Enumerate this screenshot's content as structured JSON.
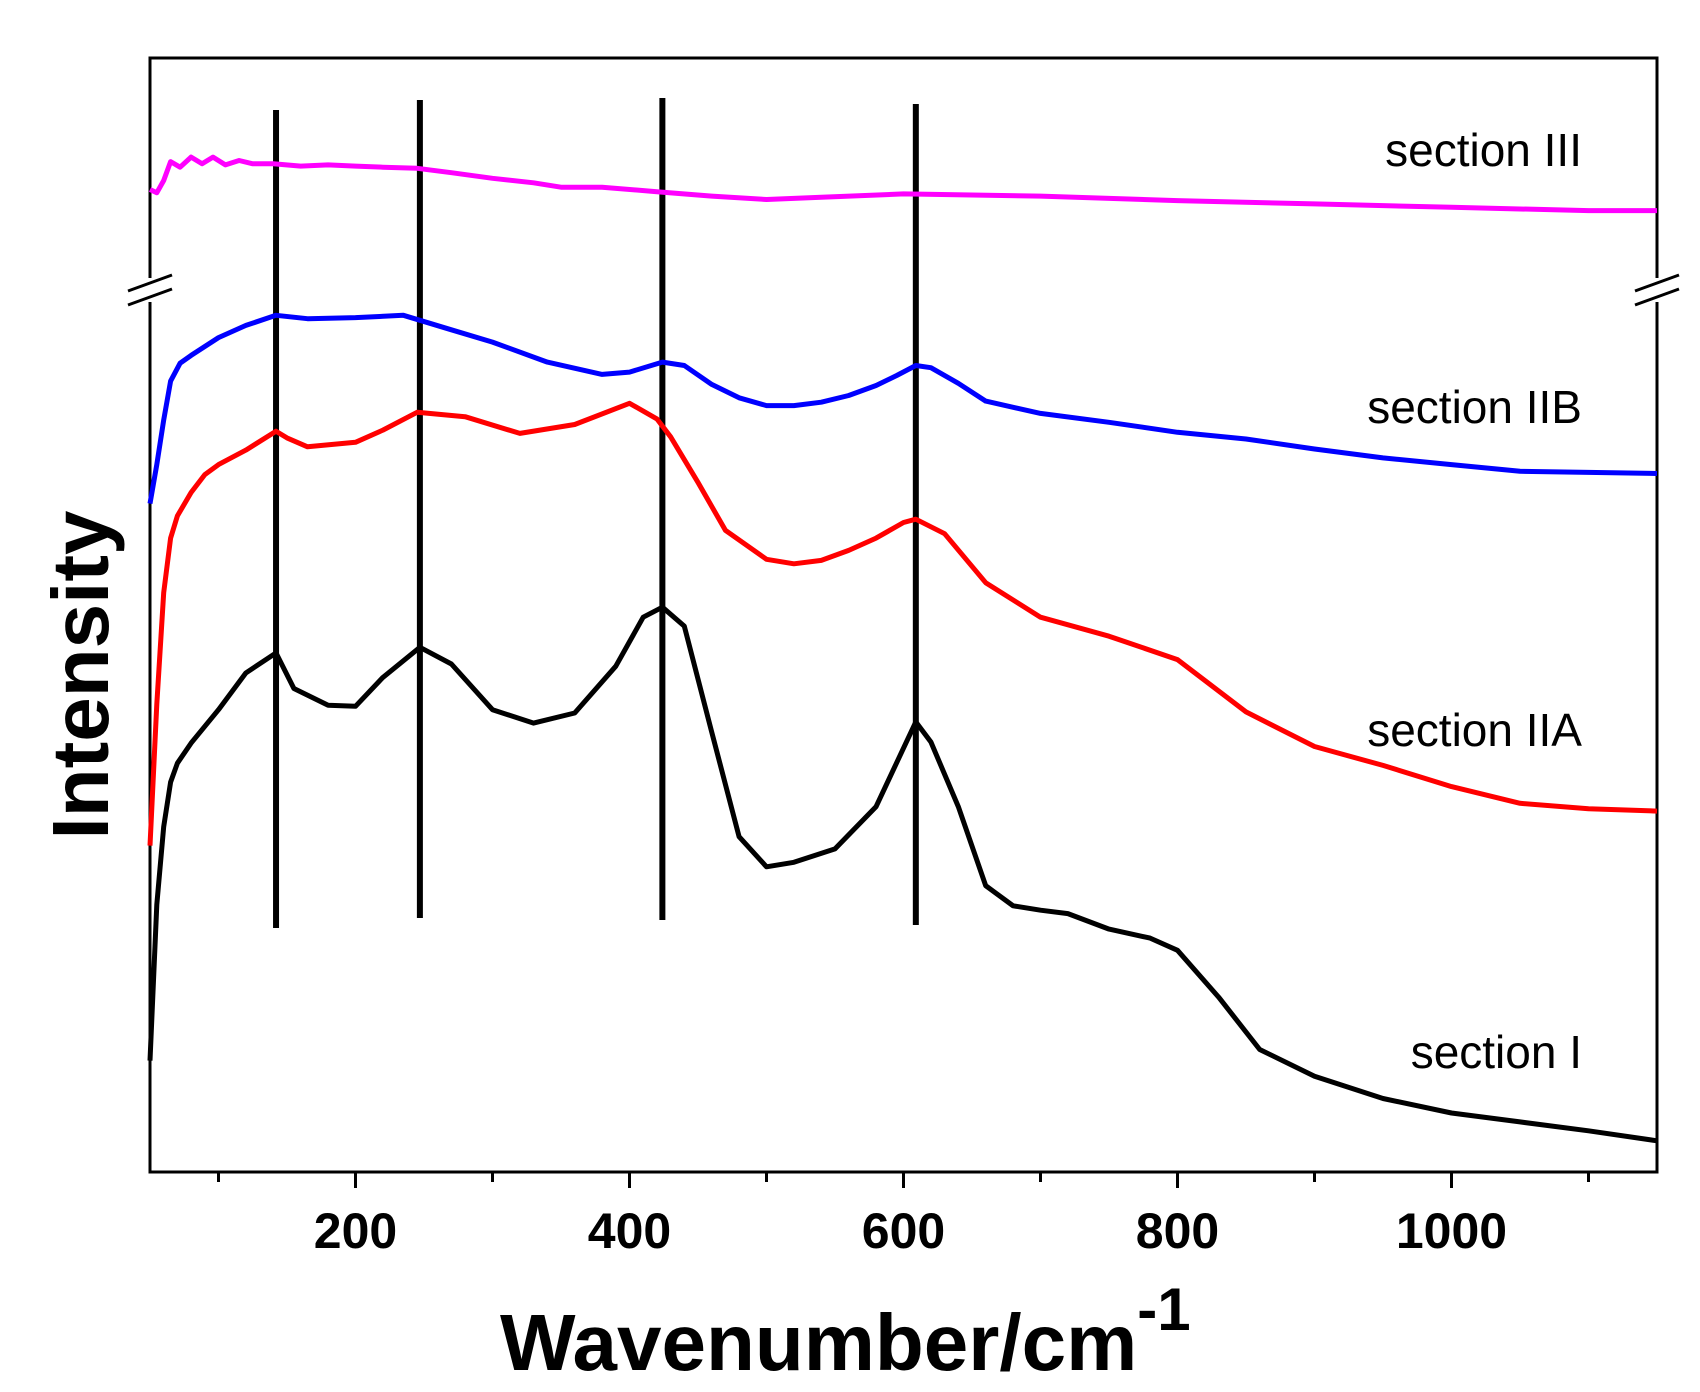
{
  "chart_data": {
    "type": "line",
    "xlabel": "Wavenumber/cm",
    "xlabel_superscript": "-1",
    "ylabel": "Intensity",
    "xlim": [
      50,
      1150
    ],
    "ylim": [
      0,
      100
    ],
    "x_ticks": [
      200,
      400,
      600,
      800,
      1000
    ],
    "x_tick_labels": [
      "200",
      "400",
      "600",
      "800",
      "1000"
    ],
    "x_minor_ticks": [
      100,
      300,
      500,
      700,
      900,
      1100
    ],
    "y_tick_labels": false,
    "axis_break": "left-and-right y-axis break between section III and section IIB",
    "reference_lines_x": [
      142,
      247,
      424,
      609
    ],
    "series": [
      {
        "name": "section III",
        "color": "#ff00ff",
        "x": [
          50,
          55,
          60,
          65,
          72,
          80,
          88,
          96,
          105,
          115,
          125,
          140,
          160,
          180,
          200,
          220,
          245,
          270,
          300,
          330,
          350,
          380,
          420,
          460,
          500,
          540,
          600,
          700,
          800,
          900,
          1000,
          1100,
          1150
        ],
        "y": [
          88.2,
          87.9,
          89.0,
          90.7,
          90.2,
          91.1,
          90.5,
          91.1,
          90.4,
          90.8,
          90.5,
          90.5,
          90.3,
          90.4,
          90.3,
          90.2,
          90.1,
          89.7,
          89.2,
          88.8,
          88.4,
          88.4,
          88.0,
          87.6,
          87.3,
          87.5,
          87.8,
          87.6,
          87.2,
          86.9,
          86.6,
          86.3,
          86.3
        ]
      },
      {
        "name": "section IIB",
        "color": "#0000ff",
        "x": [
          50,
          55,
          60,
          65,
          72,
          80,
          90,
          100,
          120,
          142,
          165,
          200,
          235,
          270,
          300,
          340,
          380,
          400,
          424,
          440,
          460,
          480,
          500,
          520,
          540,
          560,
          580,
          595,
          609,
          620,
          640,
          660,
          700,
          750,
          800,
          850,
          900,
          950,
          1000,
          1050,
          1100,
          1150
        ],
        "y": [
          60.0,
          63.5,
          67.5,
          71.0,
          72.6,
          73.3,
          74.1,
          74.9,
          76.0,
          76.9,
          76.6,
          76.7,
          76.9,
          75.6,
          74.5,
          72.7,
          71.6,
          71.8,
          72.7,
          72.4,
          70.7,
          69.5,
          68.8,
          68.8,
          69.1,
          69.7,
          70.6,
          71.5,
          72.4,
          72.2,
          70.8,
          69.2,
          68.1,
          67.3,
          66.4,
          65.8,
          64.9,
          64.1,
          63.5,
          62.9,
          62.8,
          62.7
        ]
      },
      {
        "name": "section IIA",
        "color": "#ff0000",
        "x": [
          50,
          55,
          60,
          65,
          70,
          80,
          90,
          100,
          120,
          142,
          150,
          165,
          200,
          220,
          245,
          280,
          320,
          360,
          400,
          420,
          430,
          450,
          470,
          500,
          520,
          540,
          560,
          580,
          600,
          609,
          630,
          660,
          700,
          750,
          800,
          850,
          900,
          950,
          1000,
          1050,
          1100,
          1150
        ],
        "y": [
          29.3,
          42.0,
          52.0,
          56.9,
          58.9,
          61.0,
          62.6,
          63.5,
          64.8,
          66.5,
          65.9,
          65.1,
          65.5,
          66.6,
          68.2,
          67.8,
          66.3,
          67.1,
          69.0,
          67.6,
          66.0,
          61.9,
          57.6,
          55.0,
          54.6,
          54.9,
          55.8,
          56.9,
          58.3,
          58.6,
          57.3,
          52.9,
          49.8,
          48.1,
          46.0,
          41.3,
          38.2,
          36.5,
          34.6,
          33.1,
          32.6,
          32.4
        ]
      },
      {
        "name": "section I",
        "color": "#000000",
        "x": [
          50,
          55,
          60,
          65,
          70,
          80,
          100,
          120,
          142,
          155,
          180,
          200,
          220,
          247,
          270,
          300,
          330,
          360,
          390,
          410,
          424,
          440,
          460,
          480,
          500,
          520,
          550,
          580,
          609,
          620,
          640,
          660,
          680,
          700,
          720,
          750,
          780,
          800,
          830,
          860,
          900,
          950,
          1000,
          1050,
          1100,
          1150
        ],
        "y": [
          10.0,
          24.0,
          31.0,
          35.0,
          36.7,
          38.5,
          41.5,
          44.8,
          46.6,
          43.4,
          41.9,
          41.8,
          44.4,
          47.1,
          45.6,
          41.5,
          40.3,
          41.2,
          45.4,
          49.8,
          50.7,
          49.0,
          39.5,
          30.1,
          27.4,
          27.8,
          29.0,
          32.8,
          40.4,
          38.6,
          32.8,
          25.7,
          23.9,
          23.5,
          23.2,
          21.8,
          21.0,
          19.9,
          15.7,
          11.0,
          8.6,
          6.6,
          5.3,
          4.5,
          3.7,
          2.8
        ]
      }
    ]
  }
}
